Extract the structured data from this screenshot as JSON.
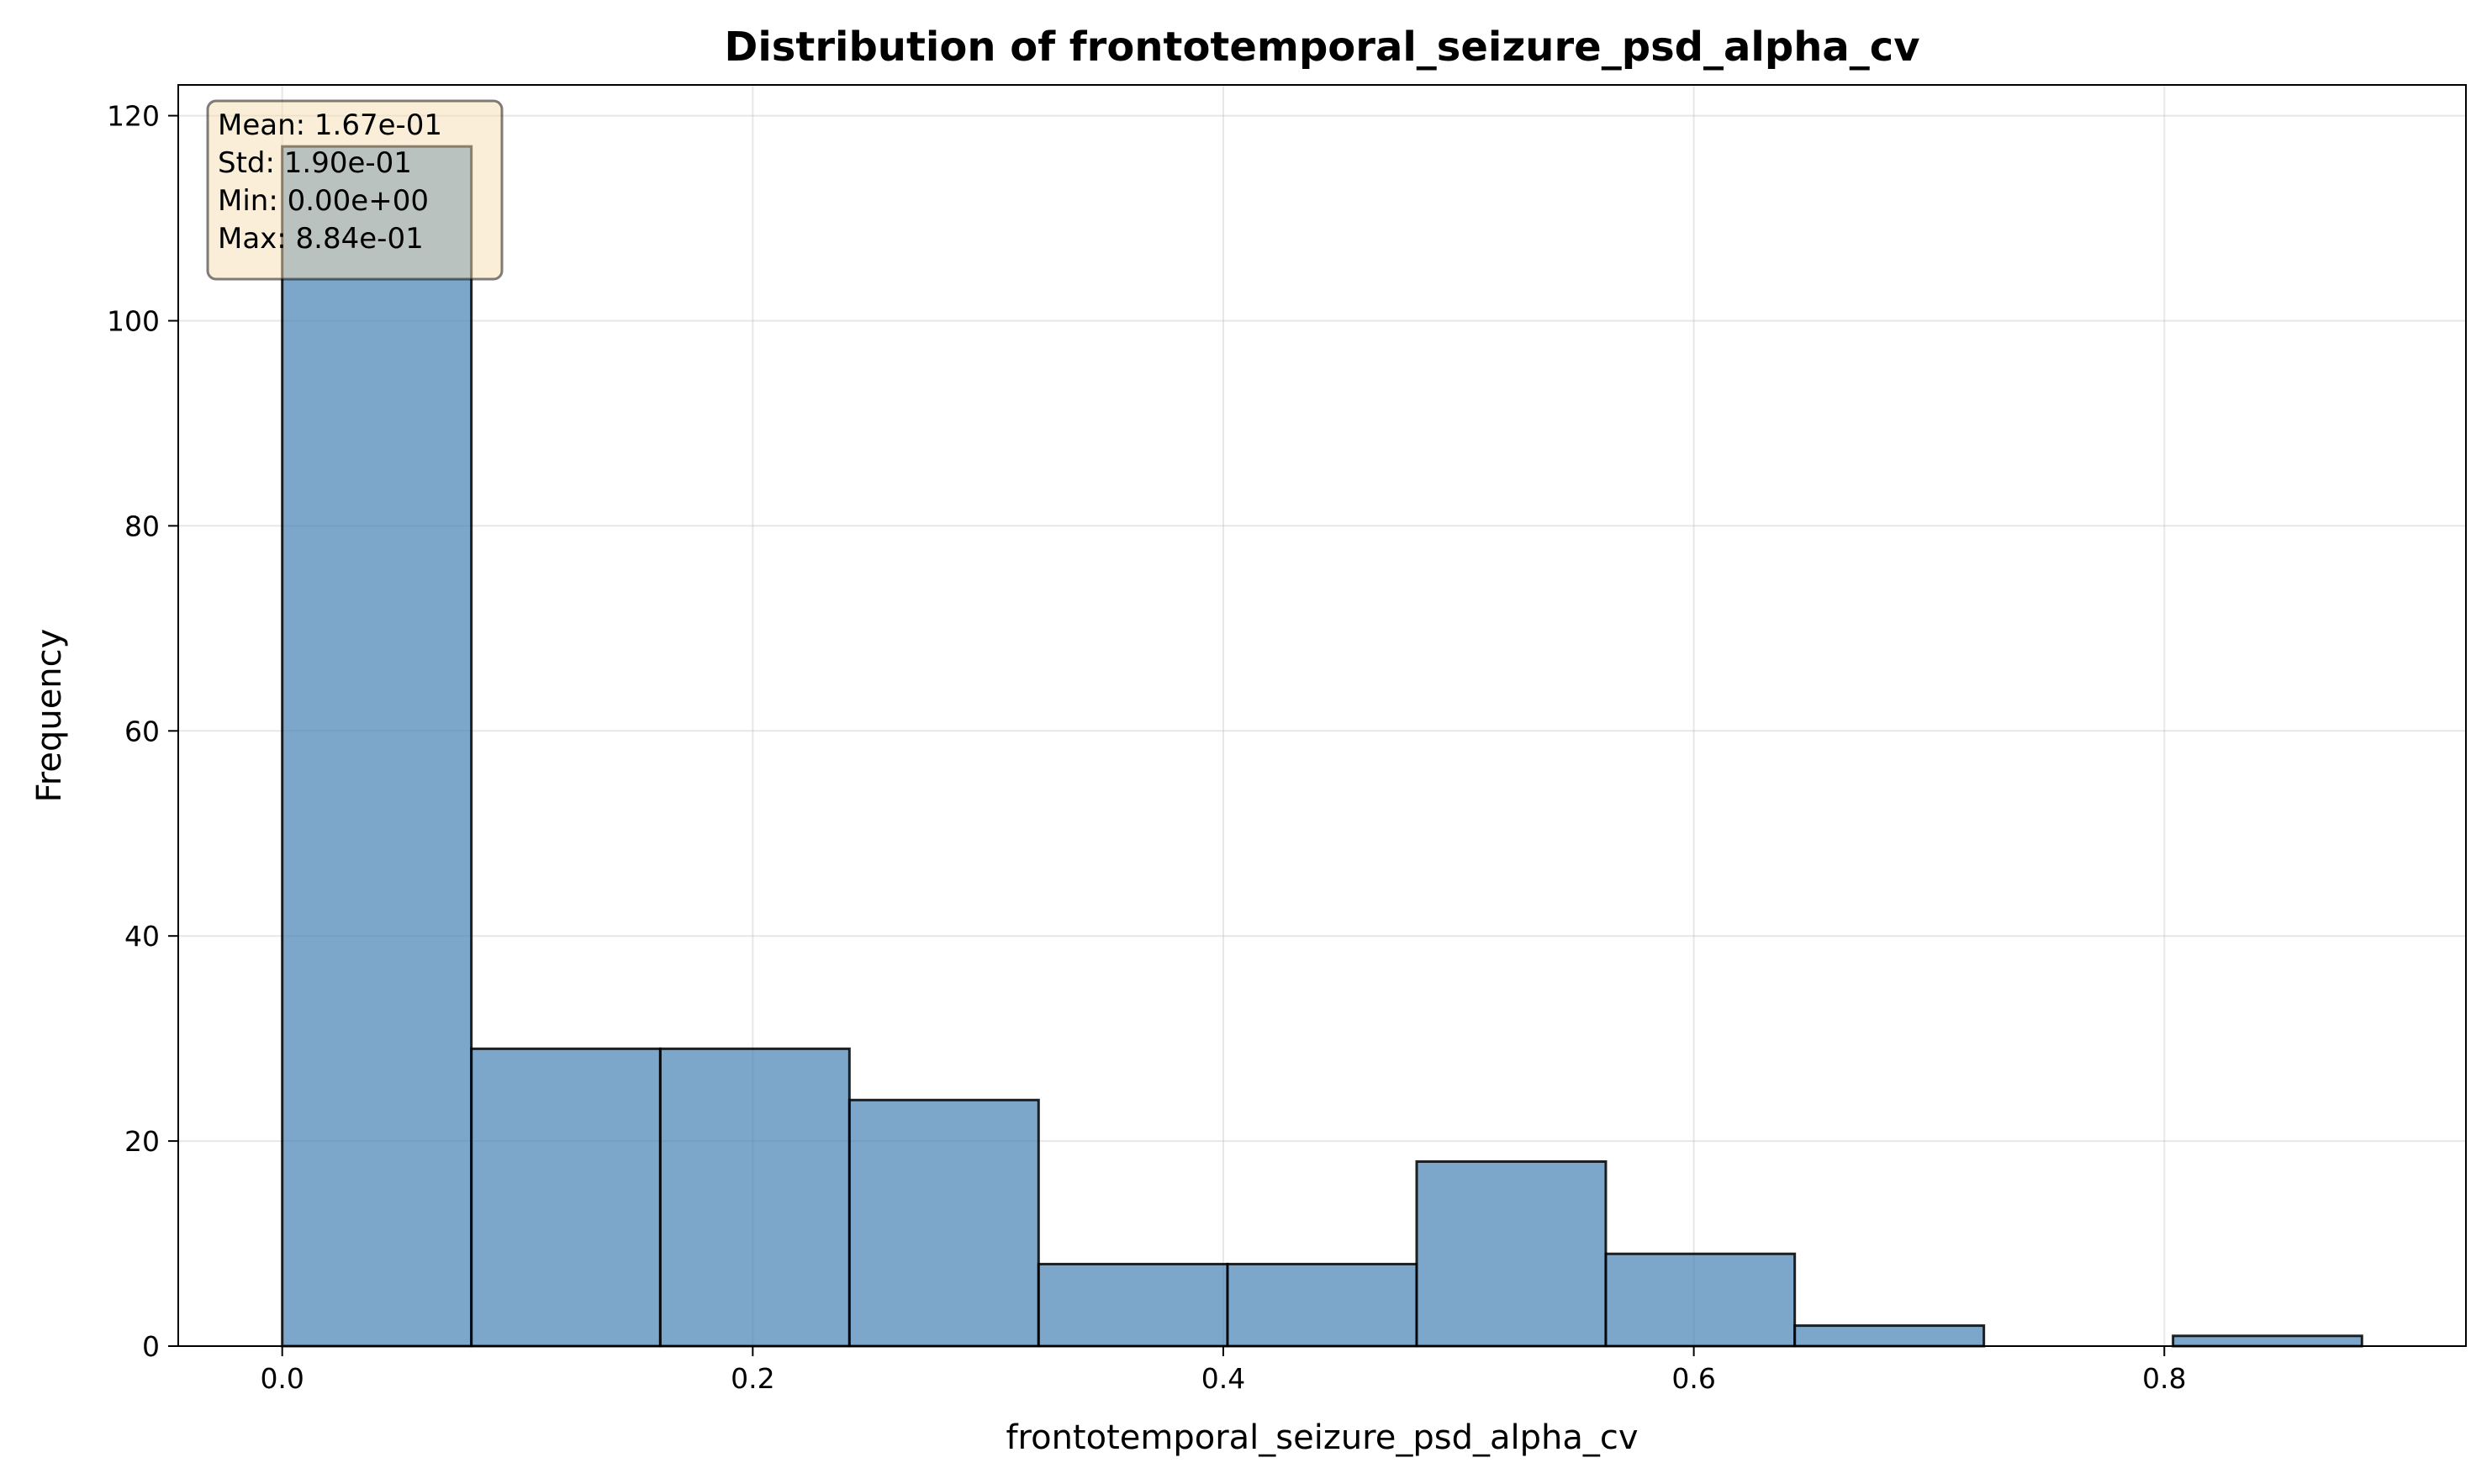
{
  "chart_data": {
    "type": "bar",
    "title": "Distribution of frontotemporal_seizure_psd_alpha_cv",
    "xlabel": "frontotemporal_seizure_psd_alpha_cv",
    "ylabel": "Frequency",
    "xlim": [
      -0.0442,
      0.9282
    ],
    "ylim": [
      0,
      123
    ],
    "xticks": [
      0.0,
      0.2,
      0.4,
      0.6,
      0.8
    ],
    "xtick_labels": [
      "0.0",
      "0.2",
      "0.4",
      "0.6",
      "0.8"
    ],
    "yticks": [
      0,
      20,
      40,
      60,
      80,
      100,
      120
    ],
    "ytick_labels": [
      "0",
      "20",
      "40",
      "60",
      "80",
      "100",
      "120"
    ],
    "grid": true,
    "bin_edges": [
      0.0,
      0.0804,
      0.1607,
      0.2411,
      0.3215,
      0.4018,
      0.4822,
      0.5626,
      0.6429,
      0.7233,
      0.8037,
      0.884
    ],
    "values": [
      117,
      29,
      29,
      24,
      8,
      8,
      18,
      9,
      2,
      0,
      1
    ],
    "bar_color": "#4682b4",
    "bar_edge_color": "#000000",
    "stats_box": {
      "lines": [
        "Mean: 1.67e-01",
        "Std: 1.90e-01",
        "Min: 0.00e+00",
        "Max: 8.84e-01"
      ],
      "placement": "top-left",
      "background": "#f5deb3"
    }
  }
}
